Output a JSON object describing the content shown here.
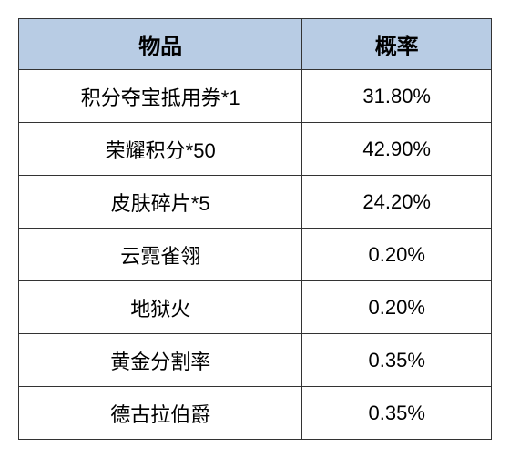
{
  "table": {
    "columns": [
      "物品",
      "概率"
    ],
    "rows": [
      [
        "积分夺宝抵用券*1",
        "31.80%"
      ],
      [
        "荣耀积分*50",
        "42.90%"
      ],
      [
        "皮肤碎片*5",
        "24.20%"
      ],
      [
        "云霓雀翎",
        "0.20%"
      ],
      [
        "地狱火",
        "0.20%"
      ],
      [
        "黄金分割率",
        "0.35%"
      ],
      [
        "德古拉伯爵",
        "0.35%"
      ]
    ],
    "header_bg_color": "#b8cce4",
    "header_text_color": "#000000",
    "header_fontsize": 24,
    "cell_bg_color": "#ffffff",
    "cell_text_color": "#000000",
    "cell_fontsize": 22,
    "border_color": "#333333",
    "col_widths": [
      "60%",
      "40%"
    ]
  }
}
